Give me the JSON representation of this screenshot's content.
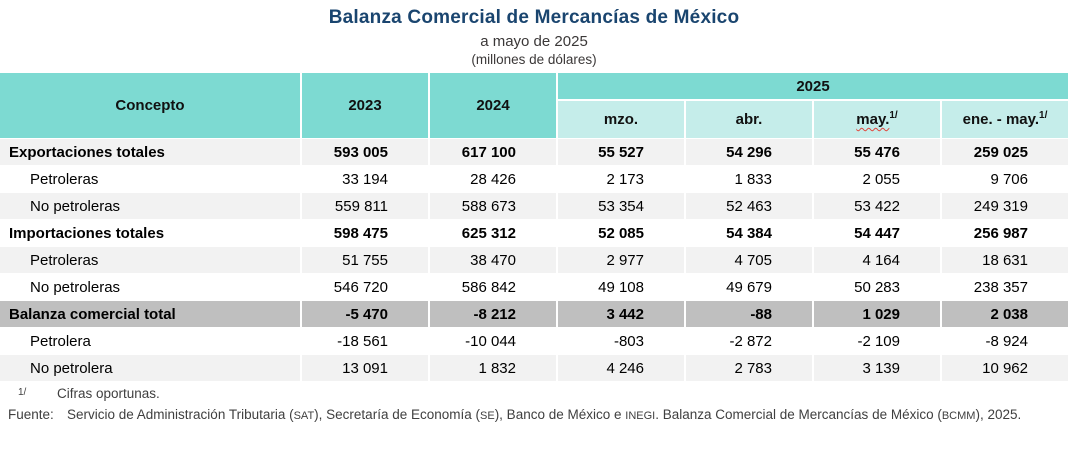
{
  "title": "Balanza Comercial de Mercancías de México",
  "subtitle": "a mayo de 2025",
  "units_note": "(millones de dólares)",
  "colors": {
    "header_teal": "#7DDAD2",
    "subheader_teal": "#C5EDEA",
    "row_gray": "#F2F2F2",
    "total_row_gray": "#BFBFBF",
    "title_navy": "#1A456F",
    "misspell_underline_red": "#E0443A"
  },
  "table": {
    "concept_header": "Concepto",
    "year_headers": [
      "2023",
      "2024"
    ],
    "group_header": "2025",
    "sub_headers": [
      {
        "label": "mzo.",
        "sup": "",
        "misspell_underline": false
      },
      {
        "label": "abr.",
        "sup": "",
        "misspell_underline": false
      },
      {
        "label": "may.",
        "sup": "1/",
        "misspell_underline": true
      },
      {
        "label": "ene. - may.",
        "sup": "1/",
        "misspell_underline": false
      }
    ],
    "rows": [
      {
        "label": "Exportaciones totales",
        "bold": true,
        "indent": false,
        "bg": "gray",
        "values": [
          "593 005",
          "617 100",
          "55 527",
          "54 296",
          "55 476",
          "259 025"
        ]
      },
      {
        "label": "Petroleras",
        "bold": false,
        "indent": true,
        "bg": "white",
        "values": [
          "33 194",
          "28 426",
          "2 173",
          "1 833",
          "2 055",
          "9 706"
        ]
      },
      {
        "label": "No petroleras",
        "bold": false,
        "indent": true,
        "bg": "gray",
        "values": [
          "559 811",
          "588 673",
          "53 354",
          "52 463",
          "53 422",
          "249 319"
        ]
      },
      {
        "label": "Importaciones totales",
        "bold": true,
        "indent": false,
        "bg": "white",
        "values": [
          "598 475",
          "625 312",
          "52 085",
          "54 384",
          "54 447",
          "256 987"
        ]
      },
      {
        "label": "Petroleras",
        "bold": false,
        "indent": true,
        "bg": "gray",
        "values": [
          "51 755",
          "38 470",
          "2 977",
          "4 705",
          "4 164",
          "18 631"
        ]
      },
      {
        "label": "No petroleras",
        "bold": false,
        "indent": true,
        "bg": "white",
        "values": [
          "546 720",
          "586 842",
          "49 108",
          "49 679",
          "50 283",
          "238 357"
        ]
      },
      {
        "label": "Balanza comercial total",
        "bold": true,
        "indent": false,
        "bg": "dark",
        "values": [
          "-5 470",
          "-8 212",
          "3 442",
          "-88",
          "1 029",
          "2 038"
        ]
      },
      {
        "label": "Petrolera",
        "bold": false,
        "indent": true,
        "bg": "white",
        "values": [
          "-18 561",
          "-10 044",
          "-803",
          "-2 872",
          "-2 109",
          "-8 924"
        ]
      },
      {
        "label": "No petrolera",
        "bold": false,
        "indent": true,
        "bg": "gray",
        "values": [
          "13 091",
          "1 832",
          "4 246",
          "2 783",
          "3 139",
          "10 962"
        ]
      }
    ]
  },
  "footnotes": {
    "marker": "1/",
    "note": "Cifras oportunas.",
    "source_label": "Fuente:",
    "source_segments": [
      {
        "text": "Servicio de Administración Tributaria (",
        "small_caps": false
      },
      {
        "text": "SAT",
        "small_caps": true
      },
      {
        "text": "), Secretaría de Economía (",
        "small_caps": false
      },
      {
        "text": "SE",
        "small_caps": true
      },
      {
        "text": "), Banco de México e ",
        "small_caps": false
      },
      {
        "text": "INEGI",
        "small_caps": true
      },
      {
        "text": ". Balanza Comercial de Mercancías de México (",
        "small_caps": false
      },
      {
        "text": "BCMM",
        "small_caps": true
      },
      {
        "text": "), 2025.",
        "small_caps": false
      }
    ]
  }
}
